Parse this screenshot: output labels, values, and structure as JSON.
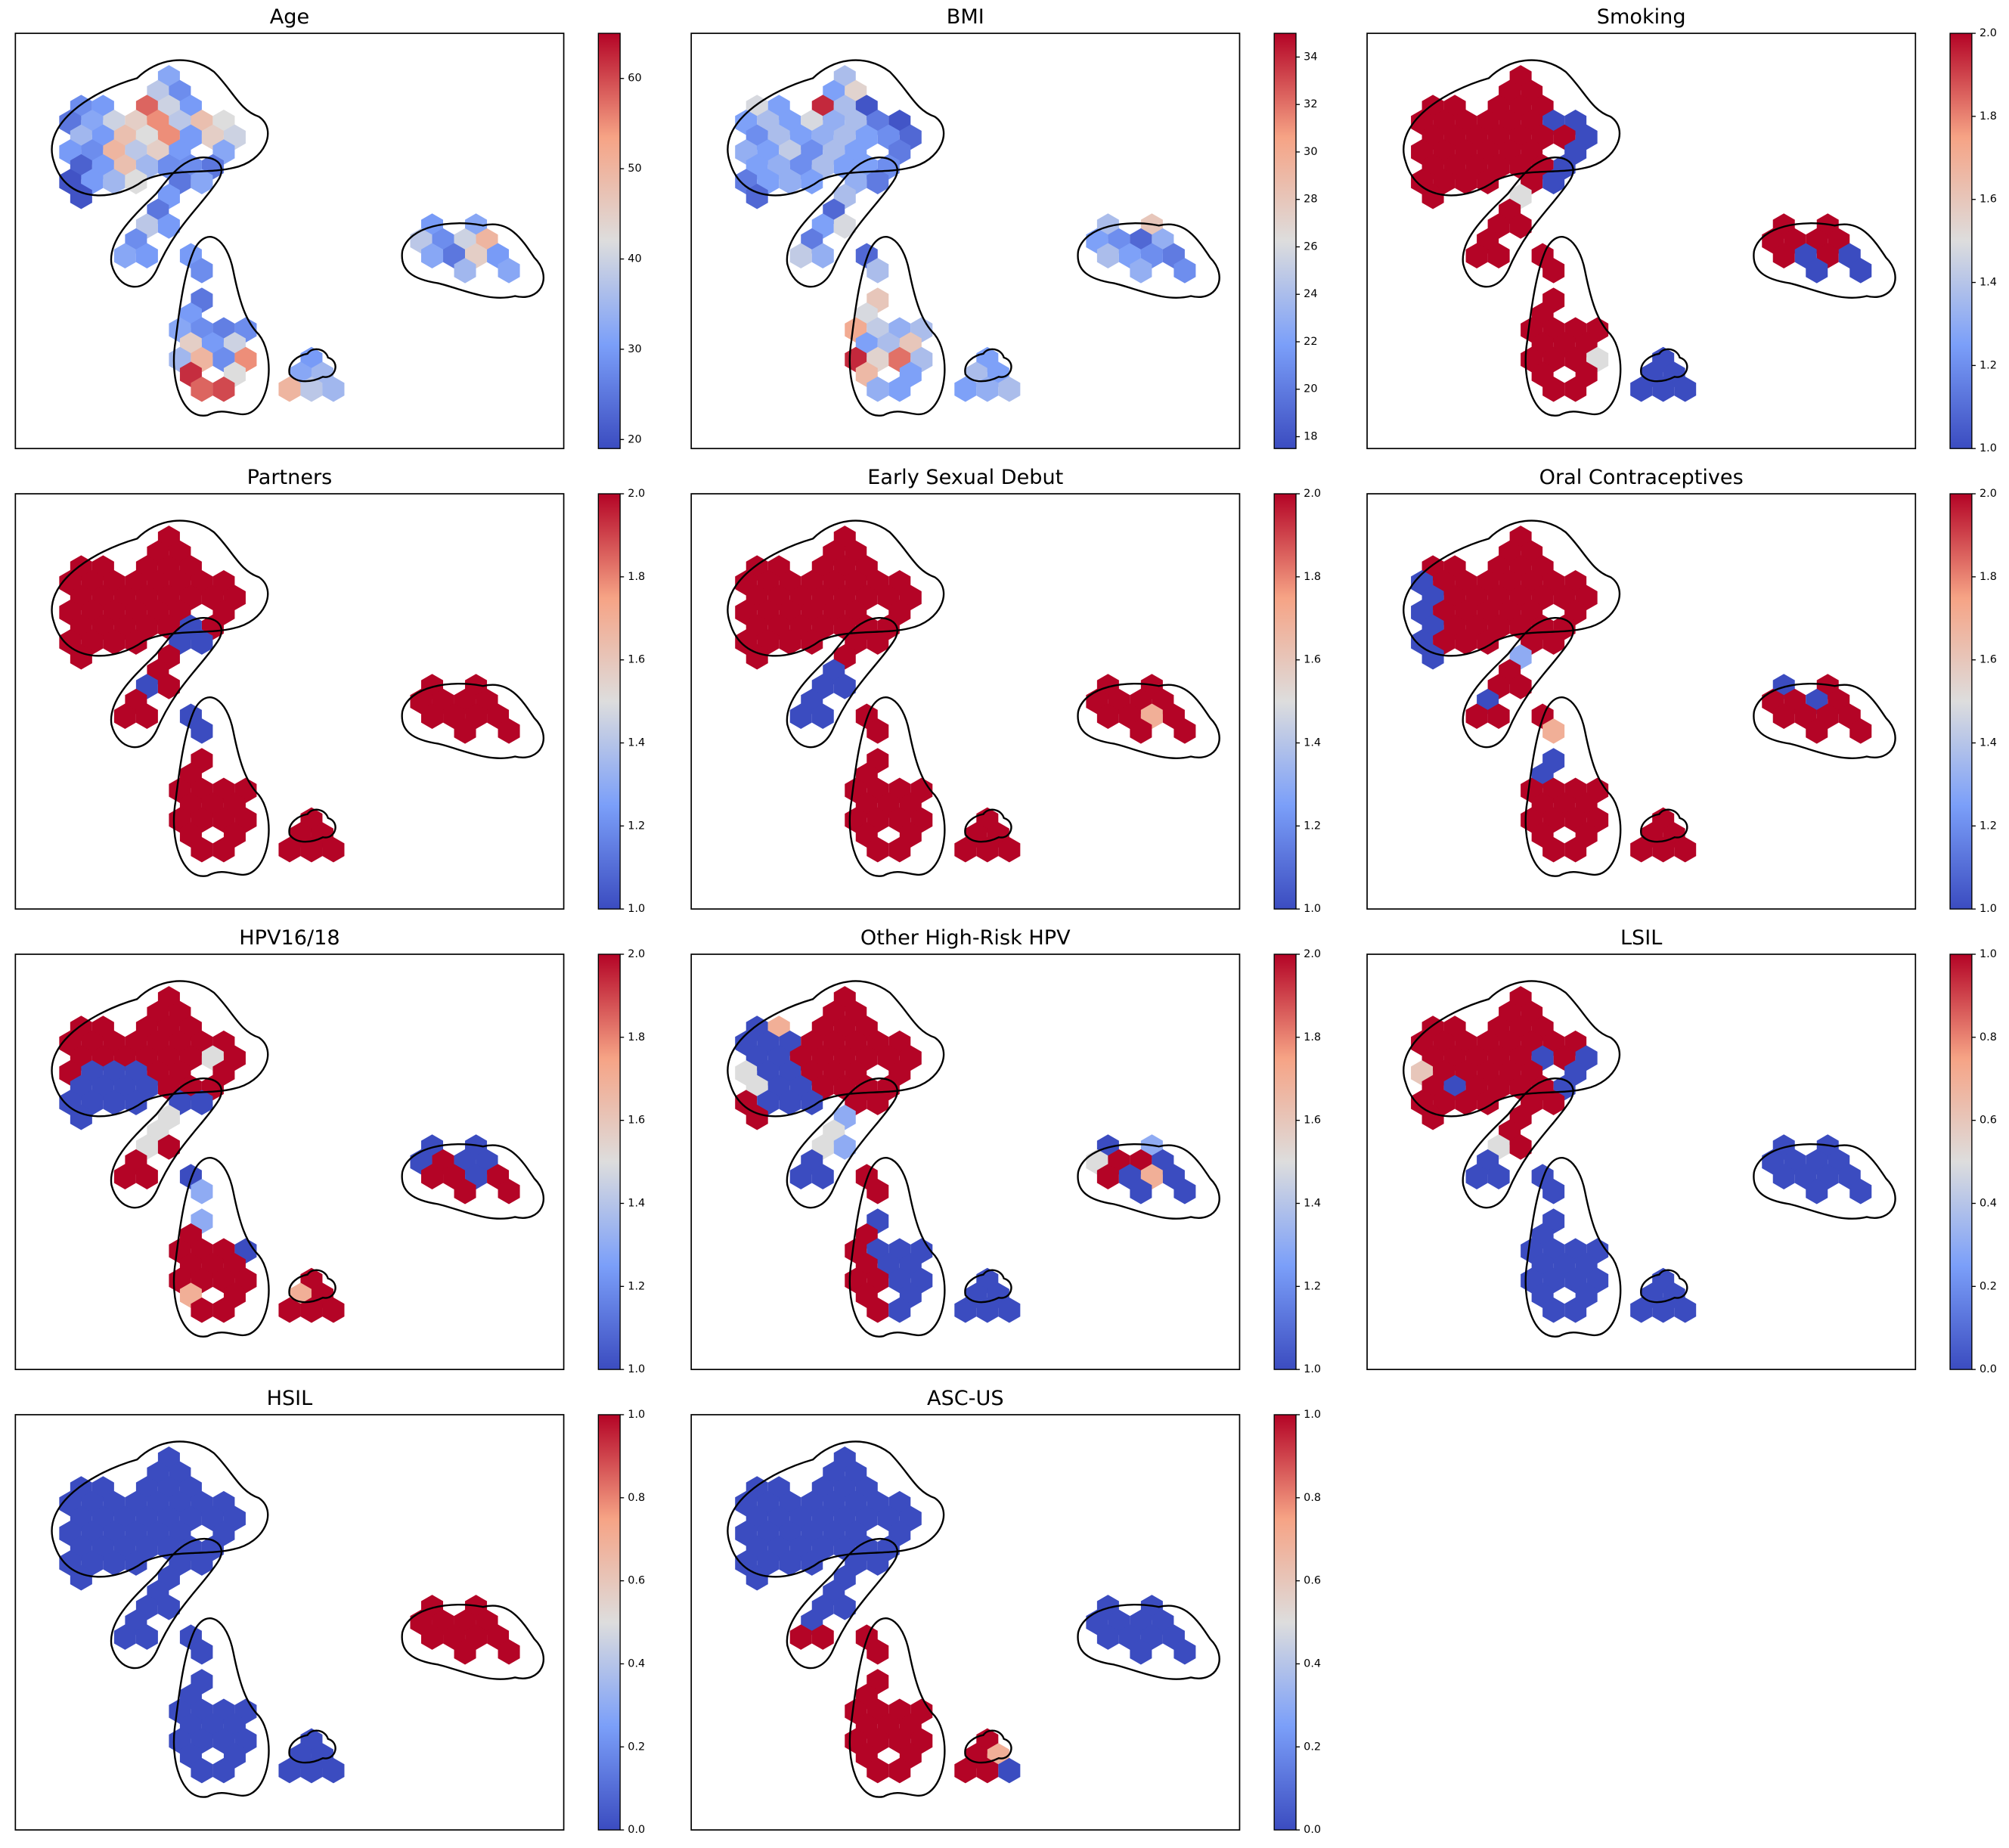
{
  "cells": {
    "x": [
      14,
      13,
      15,
      6,
      8,
      12,
      14,
      16,
      5,
      7,
      9,
      11,
      13,
      15,
      17,
      19,
      6,
      8,
      10,
      12,
      14,
      16,
      18,
      20,
      5,
      7,
      9,
      11,
      13,
      15,
      19,
      6,
      8,
      10,
      12,
      14,
      18,
      5,
      7,
      9,
      11,
      6,
      16,
      15,
      17,
      14,
      13,
      12,
      14,
      11,
      10,
      12,
      16,
      17,
      17,
      16,
      15,
      17,
      19,
      21,
      16,
      18,
      20,
      15,
      17,
      19,
      21,
      16,
      20,
      17,
      19,
      27,
      26,
      28,
      25,
      27,
      29,
      38,
      42,
      37,
      39,
      41,
      43,
      38,
      40,
      42,
      44,
      41,
      45
    ],
    "y": [
      3,
      4,
      4,
      5,
      5,
      5,
      5,
      5,
      6,
      6,
      6,
      6,
      6,
      6,
      6,
      6,
      7,
      7,
      7,
      7,
      7,
      7,
      7,
      7,
      8,
      8,
      8,
      8,
      8,
      8,
      8,
      9,
      9,
      9,
      9,
      9,
      9,
      10,
      10,
      10,
      10,
      11,
      9,
      10,
      10,
      11,
      12,
      13,
      13,
      14,
      15,
      15,
      15,
      16,
      18,
      19,
      20,
      20,
      20,
      20,
      21,
      21,
      21,
      22,
      22,
      22,
      22,
      23,
      23,
      24,
      24,
      22,
      23,
      23,
      24,
      24,
      24,
      13,
      13,
      14,
      14,
      14,
      14,
      15,
      15,
      15,
      15,
      16,
      16
    ],
    "xlim": [
      0,
      50
    ],
    "ylim": [
      28,
      0
    ]
  },
  "chart_data": [
    {
      "type": "hexbin",
      "title": "Age",
      "colormap": "coolwarm",
      "clim": [
        19,
        65
      ],
      "cticks": [
        20,
        30,
        40,
        50,
        60
      ],
      "values": [
        32,
        38,
        28,
        28,
        30,
        58,
        40,
        30,
        25,
        32,
        40,
        45,
        55,
        38,
        48,
        42,
        35,
        30,
        48,
        42,
        55,
        30,
        45,
        40,
        30,
        28,
        50,
        38,
        45,
        30,
        32,
        22,
        30,
        48,
        35,
        28,
        25,
        20,
        30,
        35,
        42,
        20,
        28,
        25,
        32,
        30,
        25,
        38,
        30,
        28,
        32,
        30,
        30,
        28,
        25,
        30,
        32,
        28,
        26,
        28,
        45,
        30,
        40,
        35,
        50,
        28,
        55,
        62,
        42,
        58,
        60,
        30,
        32,
        35,
        50,
        38,
        35,
        30,
        32,
        38,
        28,
        40,
        50,
        32,
        25,
        45,
        30,
        35,
        32
      ]
    },
    {
      "type": "hexbin",
      "title": "BMI",
      "colormap": "coolwarm",
      "clim": [
        17.5,
        35
      ],
      "cticks": [
        18,
        20,
        22,
        24,
        26,
        28,
        30,
        32,
        34
      ],
      "values": [
        24,
        22,
        27,
        26,
        22,
        34,
        24,
        18,
        22,
        24,
        22,
        26,
        23,
        24,
        20,
        18,
        21,
        24,
        22,
        23,
        24,
        22,
        21,
        19,
        23,
        22,
        25,
        21,
        24,
        22,
        20,
        22,
        23,
        21,
        24,
        22,
        21,
        20,
        22,
        23,
        22,
        19,
        22,
        23,
        20,
        24,
        19,
        22,
        26,
        20,
        25,
        23,
        19,
        24,
        28,
        26,
        30,
        25,
        23,
        24,
        22,
        24,
        28,
        34,
        27,
        32,
        24,
        29,
        22,
        23,
        22,
        22,
        24,
        22,
        22,
        23,
        24,
        24,
        28,
        22,
        21,
        19,
        23,
        24,
        22,
        21,
        20,
        23,
        21
      ]
    },
    {
      "type": "hexbin",
      "title": "Smoking",
      "colormap": "coolwarm",
      "clim": [
        1,
        2
      ],
      "cticks": [
        {
          "value": 1,
          "label": "1.0"
        },
        {
          "value": 1.2,
          "label": "1.2"
        },
        {
          "value": 1.4,
          "label": "1.4"
        },
        {
          "value": 1.6,
          "label": "1.6"
        },
        {
          "value": 1.8,
          "label": "1.8"
        },
        {
          "value": 2,
          "label": "2.0"
        }
      ],
      "values": [
        2,
        2,
        2,
        2,
        2,
        2,
        2,
        2,
        2,
        2,
        2,
        2,
        2,
        2,
        1,
        1,
        2,
        2,
        2,
        2,
        2,
        2,
        2,
        1,
        2,
        2,
        2,
        2,
        2,
        2,
        1,
        2,
        2,
        2,
        2,
        2,
        1,
        2,
        2,
        2,
        2,
        2,
        2,
        2,
        1,
        1.5,
        2,
        2,
        2,
        2,
        2,
        2,
        2,
        2,
        2,
        2,
        2,
        2,
        2,
        2,
        2,
        2,
        2,
        2,
        2,
        2,
        1.5,
        2,
        2,
        2,
        2,
        1,
        1,
        1,
        1,
        1,
        1,
        2,
        2,
        2,
        2,
        2,
        2,
        2,
        1,
        2,
        1,
        1,
        1
      ]
    },
    {
      "type": "hexbin",
      "title": "Partners",
      "colormap": "coolwarm",
      "clim": [
        1,
        2
      ],
      "cticks": [
        {
          "value": 1,
          "label": "1.0"
        },
        {
          "value": 1.2,
          "label": "1.2"
        },
        {
          "value": 1.4,
          "label": "1.4"
        },
        {
          "value": 1.6,
          "label": "1.6"
        },
        {
          "value": 1.8,
          "label": "1.8"
        },
        {
          "value": 2,
          "label": "2.0"
        }
      ],
      "values": [
        2,
        2,
        2,
        2,
        2,
        2,
        2,
        2,
        2,
        2,
        2,
        2,
        2,
        2,
        2,
        2,
        2,
        2,
        2,
        2,
        2,
        2,
        2,
        2,
        2,
        2,
        2,
        2,
        2,
        2,
        2,
        2,
        2,
        2,
        2,
        2,
        2,
        2,
        2,
        2,
        2,
        2,
        1,
        1,
        1,
        2,
        2,
        1,
        2,
        2,
        2,
        2,
        1,
        1,
        2,
        2,
        2,
        2,
        2,
        2,
        2,
        2,
        2,
        2,
        2,
        2,
        2,
        2,
        2,
        2,
        2,
        2,
        2,
        2,
        2,
        2,
        2,
        2,
        2,
        2,
        2,
        2,
        2,
        2,
        2,
        2,
        2,
        2,
        2
      ]
    },
    {
      "type": "hexbin",
      "title": "Early Sexual Debut",
      "colormap": "coolwarm",
      "clim": [
        1,
        2
      ],
      "cticks": [
        {
          "value": 1,
          "label": "1.0"
        },
        {
          "value": 1.2,
          "label": "1.2"
        },
        {
          "value": 1.4,
          "label": "1.4"
        },
        {
          "value": 1.6,
          "label": "1.6"
        },
        {
          "value": 1.8,
          "label": "1.8"
        },
        {
          "value": 2,
          "label": "2.0"
        }
      ],
      "values": [
        2,
        2,
        2,
        2,
        2,
        2,
        2,
        2,
        2,
        2,
        2,
        2,
        2,
        2,
        2,
        2,
        2,
        2,
        2,
        2,
        2,
        2,
        2,
        2,
        2,
        2,
        2,
        2,
        2,
        2,
        2,
        2,
        2,
        2,
        2,
        2,
        2,
        2,
        2,
        2,
        2,
        2,
        2,
        2,
        2,
        2,
        1,
        1,
        1,
        1,
        1,
        1,
        2,
        2,
        2,
        2,
        2,
        2,
        2,
        2,
        2,
        2,
        2,
        2,
        2,
        2,
        2,
        2,
        2,
        2,
        2,
        2,
        2,
        2,
        2,
        2,
        2,
        2,
        2,
        2,
        2,
        2,
        2,
        2,
        2,
        1.7,
        2,
        2,
        2
      ]
    },
    {
      "type": "hexbin",
      "title": "Oral Contraceptives",
      "colormap": "coolwarm",
      "clim": [
        1,
        2
      ],
      "cticks": [
        {
          "value": 1,
          "label": "1.0"
        },
        {
          "value": 1.2,
          "label": "1.2"
        },
        {
          "value": 1.4,
          "label": "1.4"
        },
        {
          "value": 1.6,
          "label": "1.6"
        },
        {
          "value": 1.8,
          "label": "1.8"
        },
        {
          "value": 2,
          "label": "2.0"
        }
      ],
      "values": [
        2,
        2,
        2,
        2,
        2,
        2,
        2,
        2,
        1,
        2,
        2,
        2,
        2,
        2,
        2,
        2,
        1,
        2,
        2,
        2,
        2,
        2,
        2,
        2,
        1,
        2,
        2,
        2,
        2,
        2,
        2,
        1,
        2,
        2,
        2,
        2,
        2,
        1,
        2,
        2,
        2,
        1,
        2,
        2,
        2,
        1.3,
        2,
        2,
        2,
        1,
        2,
        2,
        2,
        1.7,
        1,
        1,
        2,
        2,
        2,
        2,
        2,
        2,
        2,
        2,
        2,
        2,
        2,
        2,
        2,
        2,
        2,
        2,
        2,
        2,
        2,
        2,
        2,
        1,
        2,
        2,
        2,
        1,
        2,
        2,
        2,
        2,
        2,
        2,
        2
      ]
    },
    {
      "type": "hexbin",
      "title": "HPV16/18",
      "colormap": "coolwarm",
      "clim": [
        1,
        2
      ],
      "cticks": [
        {
          "value": 1,
          "label": "1.0"
        },
        {
          "value": 1.2,
          "label": "1.2"
        },
        {
          "value": 1.4,
          "label": "1.4"
        },
        {
          "value": 1.6,
          "label": "1.6"
        },
        {
          "value": 1.8,
          "label": "1.8"
        },
        {
          "value": 2,
          "label": "2.0"
        }
      ],
      "values": [
        2,
        2,
        2,
        2,
        2,
        2,
        2,
        2,
        2,
        2,
        2,
        2,
        2,
        2,
        2,
        2,
        2,
        2,
        2,
        2,
        2,
        2,
        1.5,
        2,
        2,
        1,
        1,
        1,
        2,
        2,
        2,
        1,
        1,
        1,
        1,
        2,
        2,
        1,
        1,
        1,
        1,
        1,
        2,
        1,
        1,
        1.5,
        1.5,
        1.5,
        2,
        2,
        2,
        2,
        1,
        1.3,
        1.3,
        2,
        2,
        2,
        2,
        1,
        2,
        2,
        2,
        2,
        2,
        2,
        2,
        1.7,
        2,
        2,
        2,
        2,
        1.7,
        2,
        2,
        2,
        2,
        1,
        1,
        1,
        2,
        1,
        1,
        2,
        2,
        1,
        2,
        2,
        2
      ]
    },
    {
      "type": "hexbin",
      "title": "Other High-Risk HPV",
      "colormap": "coolwarm",
      "clim": [
        1,
        2
      ],
      "cticks": [
        {
          "value": 1,
          "label": "1.0"
        },
        {
          "value": 1.2,
          "label": "1.2"
        },
        {
          "value": 1.4,
          "label": "1.4"
        },
        {
          "value": 1.6,
          "label": "1.6"
        },
        {
          "value": 1.8,
          "label": "1.8"
        },
        {
          "value": 2,
          "label": "2.0"
        }
      ],
      "values": [
        2,
        2,
        2,
        1,
        1.7,
        2,
        2,
        2,
        1,
        1,
        1,
        2,
        2,
        2,
        2,
        2,
        1,
        1,
        2,
        2,
        2,
        2,
        2,
        2,
        1.5,
        1,
        1,
        2,
        2,
        2,
        2,
        1.5,
        1,
        1,
        2,
        2,
        2,
        2,
        1,
        1,
        1,
        2,
        2,
        2,
        2,
        1.3,
        1.5,
        1.5,
        1.3,
        1,
        1,
        1,
        2,
        2,
        1,
        2,
        2,
        1,
        1,
        1,
        2,
        1,
        1,
        2,
        2,
        1,
        1,
        2,
        1,
        2,
        1,
        1,
        1,
        1,
        1,
        1,
        1,
        1,
        1.3,
        1.5,
        2,
        2,
        1,
        2,
        1,
        1.7,
        1,
        1,
        1
      ]
    },
    {
      "type": "hexbin",
      "title": "LSIL",
      "colormap": "coolwarm",
      "clim": [
        0,
        1
      ],
      "cticks": [
        {
          "value": 0,
          "label": "0.0"
        },
        {
          "value": 0.2,
          "label": "0.2"
        },
        {
          "value": 0.4,
          "label": "0.4"
        },
        {
          "value": 0.6,
          "label": "0.6"
        },
        {
          "value": 0.8,
          "label": "0.8"
        },
        {
          "value": 1,
          "label": "1.0"
        }
      ],
      "values": [
        1,
        1,
        1,
        1,
        1,
        1,
        1,
        1,
        1,
        1,
        1,
        1,
        1,
        1,
        1,
        1,
        1,
        1,
        1,
        1,
        1,
        0,
        1,
        0,
        0.6,
        1,
        1,
        1,
        1,
        1,
        0,
        1,
        0,
        1,
        1,
        1,
        0,
        1,
        1,
        1,
        1,
        1,
        1,
        1,
        1,
        1,
        1,
        0.5,
        1,
        0,
        0,
        0,
        0,
        0,
        0,
        0,
        0,
        0,
        0,
        0,
        0,
        0,
        0,
        0,
        0,
        0,
        0,
        0,
        0,
        0,
        0,
        0,
        0,
        0,
        0,
        0,
        0,
        0,
        0,
        0,
        0,
        0,
        0,
        0,
        0,
        0,
        0,
        0,
        0
      ]
    },
    {
      "type": "hexbin",
      "title": "HSIL",
      "colormap": "coolwarm",
      "clim": [
        0,
        1
      ],
      "cticks": [
        {
          "value": 0,
          "label": "0.0"
        },
        {
          "value": 0.2,
          "label": "0.2"
        },
        {
          "value": 0.4,
          "label": "0.4"
        },
        {
          "value": 0.6,
          "label": "0.6"
        },
        {
          "value": 0.8,
          "label": "0.8"
        },
        {
          "value": 1,
          "label": "1.0"
        }
      ],
      "values": [
        0,
        0,
        0,
        0,
        0,
        0,
        0,
        0,
        0,
        0,
        0,
        0,
        0,
        0,
        0,
        0,
        0,
        0,
        0,
        0,
        0,
        0,
        0,
        0,
        0,
        0,
        0,
        0,
        0,
        0,
        0,
        0,
        0,
        0,
        0,
        0,
        0,
        0,
        0,
        0,
        0,
        0,
        0,
        0,
        0,
        0,
        0,
        0,
        0,
        0,
        0,
        0,
        0,
        0,
        0,
        0,
        0,
        0,
        0,
        0,
        0,
        0,
        0,
        0,
        0,
        0,
        0,
        0,
        0,
        0,
        0,
        0,
        0,
        0,
        0,
        0,
        0,
        1,
        1,
        1,
        1,
        1,
        1,
        1,
        1,
        1,
        1,
        1,
        1
      ]
    },
    {
      "type": "hexbin",
      "title": "ASC-US",
      "colormap": "coolwarm",
      "clim": [
        0,
        1
      ],
      "cticks": [
        {
          "value": 0,
          "label": "0.0"
        },
        {
          "value": 0.2,
          "label": "0.2"
        },
        {
          "value": 0.4,
          "label": "0.4"
        },
        {
          "value": 0.6,
          "label": "0.6"
        },
        {
          "value": 0.8,
          "label": "0.8"
        },
        {
          "value": 1,
          "label": "1.0"
        }
      ],
      "values": [
        0,
        0,
        0,
        0,
        0,
        0,
        0,
        0,
        0,
        0,
        0,
        0,
        0,
        0,
        0,
        0,
        0,
        0,
        0,
        0,
        0,
        0,
        0,
        0,
        0,
        0,
        0,
        0,
        0,
        0,
        0,
        0,
        0,
        0,
        0,
        0,
        0,
        0,
        0,
        0,
        0,
        0,
        0,
        0,
        0,
        0,
        0,
        0,
        0,
        0,
        1,
        1,
        1,
        1,
        1,
        1,
        1,
        1,
        1,
        1,
        1,
        1,
        1,
        1,
        1,
        1,
        1,
        1,
        1,
        1,
        1,
        1,
        1,
        0.7,
        1,
        1,
        0,
        0,
        0,
        0,
        0,
        0,
        0,
        0,
        0,
        0,
        0,
        0,
        0
      ]
    }
  ]
}
